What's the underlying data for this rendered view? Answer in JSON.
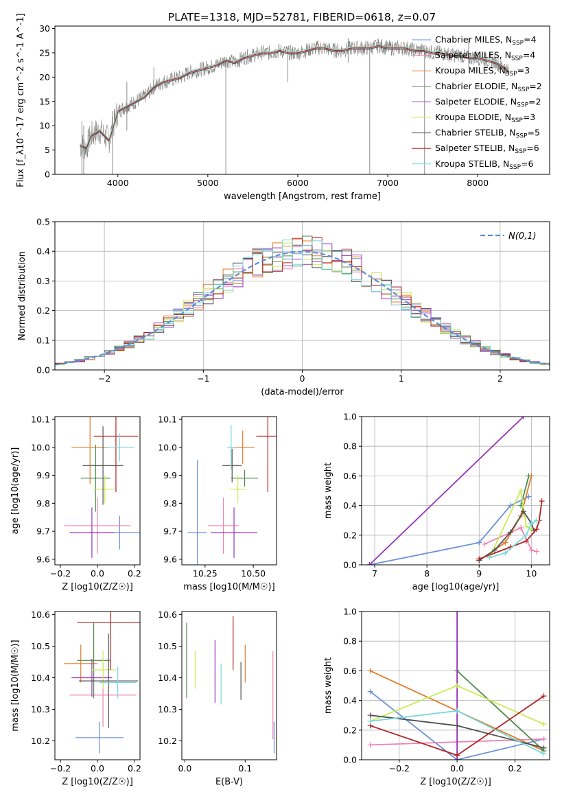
{
  "title": "PLATE=1318, MJD=52781, FIBERID=0618, z=0.07",
  "models": [
    {
      "name": "Chabrier MILES",
      "nssp": "4",
      "color": "#6a8fd8"
    },
    {
      "name": "Salpeter MILES",
      "nssp": "4",
      "color": "#ee82b0"
    },
    {
      "name": "Kroupa MILES",
      "nssp": "3",
      "color": "#e07b28"
    },
    {
      "name": "Chabrier ELODIE",
      "nssp": "2",
      "color": "#4c8a4c"
    },
    {
      "name": "Salpeter ELODIE",
      "nssp": "2",
      "color": "#9932b8"
    },
    {
      "name": "Kroupa ELODIE",
      "nssp": "3",
      "color": "#c9ec52"
    },
    {
      "name": "Chabrier STELIB",
      "nssp": "5",
      "color": "#505050"
    },
    {
      "name": "Salpeter STELIB",
      "nssp": "6",
      "color": "#b22222"
    },
    {
      "name": "Kroupa STELIB",
      "nssp": "6",
      "color": "#78d8dc"
    }
  ],
  "chart_data": [
    {
      "id": "spectrum",
      "type": "line",
      "xlabel": "wavelength [Angstrom, rest frame]",
      "ylabel": "Flux [f_λ10^-17 erg cm^-2 s^-1 A^-1]",
      "xlim": [
        3300,
        8800
      ],
      "ylim": [
        0,
        30.5
      ],
      "xticks": [
        4000,
        5000,
        6000,
        7000,
        8000
      ],
      "yticks": [
        0,
        5,
        10,
        15,
        20,
        25,
        30
      ],
      "legend_position": "right",
      "data_color": "#808080",
      "continuum": {
        "x": [
          3580,
          3650,
          3700,
          3800,
          3900,
          3950,
          4000,
          4100,
          4200,
          4300,
          4400,
          4500,
          4600,
          4700,
          4800,
          4900,
          5000,
          5100,
          5200,
          5300,
          5400,
          5500,
          5600,
          5700,
          5800,
          5900,
          6000,
          6100,
          6200,
          6300,
          6400,
          6500,
          6600,
          6700,
          6800,
          6900,
          7000,
          7100,
          7200,
          7300,
          7400,
          7500,
          7600,
          7700,
          7800,
          7900,
          8000,
          8100,
          8200,
          8300,
          8350
        ],
        "y": [
          6,
          5.5,
          8,
          9,
          7,
          10,
          13,
          14,
          15,
          16,
          18,
          19,
          19.5,
          20,
          21,
          21.5,
          22,
          22.5,
          23.5,
          23,
          24,
          24.5,
          25,
          25,
          25.5,
          25,
          25,
          25.5,
          26,
          26,
          25.5,
          25.5,
          26,
          26,
          26,
          26.5,
          26,
          26,
          26,
          25.5,
          25.5,
          25,
          25,
          24.5,
          24.5,
          24,
          24,
          23.5,
          23,
          22,
          21
        ]
      },
      "spikes": [
        {
          "x": 3600,
          "lo": 0,
          "hi": 11
        },
        {
          "x": 3620,
          "lo": 0,
          "hi": 10
        },
        {
          "x": 3940,
          "lo": 0,
          "hi": 13
        },
        {
          "x": 4100,
          "lo": 9,
          "hi": 19
        },
        {
          "x": 4400,
          "lo": 19,
          "hi": 22
        },
        {
          "x": 5200,
          "lo": 0,
          "hi": 23
        },
        {
          "x": 5890,
          "lo": 19,
          "hi": 25
        },
        {
          "x": 6560,
          "lo": 23,
          "hi": 28
        },
        {
          "x": 6800,
          "lo": 0,
          "hi": 26
        },
        {
          "x": 7410,
          "lo": 0,
          "hi": 26
        },
        {
          "x": 7900,
          "lo": 22,
          "hi": 28
        }
      ]
    },
    {
      "id": "residuals",
      "type": "step",
      "xlabel": "(data-model)/error",
      "ylabel": "Normed distribution",
      "xlim": [
        -2.5,
        2.5
      ],
      "ylim": [
        0,
        0.5
      ],
      "xticks": [
        -2,
        -1,
        0,
        1,
        2
      ],
      "yticks": [
        0.0,
        0.1,
        0.2,
        0.3,
        0.4,
        0.5
      ],
      "grid": true,
      "legend_position": "top-right",
      "reference_label": "N(0,1)",
      "reference_color": "#5b8ad8"
    },
    {
      "id": "age-vs-Z",
      "type": "errorbar",
      "xlabel": "Z [log10(Z/Z☉)]",
      "ylabel": "age [log10(age/yr)]",
      "xlim": [
        -0.23,
        0.23
      ],
      "ylim": [
        9.58,
        10.11
      ],
      "xticks": [
        -0.2,
        0.0,
        0.2
      ],
      "yticks": [
        9.6,
        9.7,
        9.8,
        9.9,
        10.0,
        10.1
      ],
      "points": [
        {
          "x": 0.12,
          "y": 9.695,
          "xerr": 0.15,
          "yerr": 0.06
        },
        {
          "x": 0.0,
          "y": 9.72,
          "xerr": 0.18,
          "yerr": 0.1
        },
        {
          "x": -0.04,
          "y": 10.0,
          "xerr": 0.1,
          "yerr": 0.13
        },
        {
          "x": -0.01,
          "y": 9.89,
          "xerr": 0.08,
          "yerr": 0.12
        },
        {
          "x": -0.03,
          "y": 9.695,
          "xerr": 0.12,
          "yerr": 0.09
        },
        {
          "x": 0.04,
          "y": 9.85,
          "xerr": 0.06,
          "yerr": 0.05
        },
        {
          "x": 0.03,
          "y": 9.935,
          "xerr": 0.11,
          "yerr": 0.14
        },
        {
          "x": 0.1,
          "y": 10.04,
          "xerr": 0.12,
          "yerr": 0.2
        },
        {
          "x": 0.12,
          "y": 10.0,
          "xerr": 0.08,
          "yerr": 0.05
        }
      ]
    },
    {
      "id": "age-vs-mass",
      "type": "errorbar",
      "xlabel": "mass [log10(M/M☉)]",
      "ylabel": "",
      "xlim": [
        10.13,
        10.62
      ],
      "ylim": [
        9.58,
        10.11
      ],
      "xticks": [
        10.25,
        10.5
      ],
      "yticks": [
        9.6,
        9.7,
        9.8,
        9.9,
        10.0,
        10.1
      ],
      "points": [
        {
          "x": 10.21,
          "y": 9.695,
          "xerr": 0.05,
          "yerr": 0.26
        },
        {
          "x": 10.345,
          "y": 9.72,
          "xerr": 0.08,
          "yerr": 0.1
        },
        {
          "x": 10.445,
          "y": 10.0,
          "xerr": 0.06,
          "yerr": 0.06
        },
        {
          "x": 10.455,
          "y": 9.89,
          "xerr": 0.07,
          "yerr": 0.03
        },
        {
          "x": 10.4,
          "y": 9.695,
          "xerr": 0.12,
          "yerr": 0.09
        },
        {
          "x": 10.42,
          "y": 9.85,
          "xerr": 0.04,
          "yerr": 0.05
        },
        {
          "x": 10.39,
          "y": 9.935,
          "xerr": 0.05,
          "yerr": 0.06
        },
        {
          "x": 10.575,
          "y": 10.04,
          "xerr": 0.06,
          "yerr": 0.2
        },
        {
          "x": 10.385,
          "y": 10.0,
          "xerr": 0.02,
          "yerr": 0.08
        }
      ]
    },
    {
      "id": "weight-vs-age",
      "type": "line",
      "xlabel": "age [log10(age/yr)]",
      "ylabel": "mass weight",
      "xlim": [
        6.75,
        10.35
      ],
      "ylim": [
        0,
        1.0
      ],
      "xticks": [
        7,
        8,
        9,
        10
      ],
      "yticks": [
        0.0,
        0.2,
        0.4,
        0.6,
        0.8,
        1.0
      ],
      "grid": true,
      "series": [
        {
          "x": [
            6.9,
            9.0,
            9.6,
            9.95
          ],
          "y": [
            0.0,
            0.15,
            0.4,
            0.46
          ]
        },
        {
          "x": [
            9.1,
            9.8,
            10.0,
            10.1
          ],
          "y": [
            0.14,
            0.25,
            0.1,
            0.09
          ]
        },
        {
          "x": [
            9.0,
            9.5,
            9.8,
            10.0
          ],
          "y": [
            0.03,
            0.15,
            0.33,
            0.6
          ]
        },
        {
          "x": [
            9.8,
            9.95
          ],
          "y": [
            0.4,
            0.6
          ]
        },
        {
          "x": [
            6.9,
            9.85
          ],
          "y": [
            0.0,
            1.0
          ]
        },
        {
          "x": [
            9.2,
            9.8,
            9.9,
            10.0
          ],
          "y": [
            0.05,
            0.5,
            0.26,
            0.24
          ]
        },
        {
          "x": [
            9.0,
            9.3,
            9.6,
            9.85,
            10.0,
            10.05
          ],
          "y": [
            0.03,
            0.1,
            0.22,
            0.36,
            0.28,
            0.23
          ]
        },
        {
          "x": [
            9.0,
            9.6,
            9.9,
            10.1,
            10.15,
            10.2
          ],
          "y": [
            0.04,
            0.12,
            0.16,
            0.24,
            0.3,
            0.43
          ]
        },
        {
          "x": [
            9.2,
            9.5,
            9.9,
            10.0,
            10.1
          ],
          "y": [
            0.05,
            0.08,
            0.2,
            0.28,
            0.3
          ]
        }
      ]
    },
    {
      "id": "mass-vs-Z",
      "type": "errorbar",
      "xlabel": "Z [log10(Z/Z☉)]",
      "ylabel": "mass [log10(M/M☉)]",
      "xlim": [
        -0.23,
        0.23
      ],
      "ylim": [
        10.14,
        10.61
      ],
      "xticks": [
        -0.2,
        0.0,
        0.2
      ],
      "yticks": [
        10.2,
        10.3,
        10.4,
        10.5,
        10.6
      ],
      "points": [
        {
          "x": 0.01,
          "y": 10.21,
          "xerr": 0.13,
          "yerr": 0.05
        },
        {
          "x": 0.03,
          "y": 10.345,
          "xerr": 0.18,
          "yerr": 0.1
        },
        {
          "x": -0.09,
          "y": 10.445,
          "xerr": 0.09,
          "yerr": 0.06
        },
        {
          "x": -0.02,
          "y": 10.455,
          "xerr": 0.09,
          "yerr": 0.12
        },
        {
          "x": -0.03,
          "y": 10.4,
          "xerr": 0.11,
          "yerr": 0.06
        },
        {
          "x": 0.03,
          "y": 10.425,
          "xerr": 0.07,
          "yerr": 0.06
        },
        {
          "x": 0.06,
          "y": 10.39,
          "xerr": 0.16,
          "yerr": 0.15
        },
        {
          "x": 0.07,
          "y": 10.575,
          "xerr": 0.18,
          "yerr": 0.15
        },
        {
          "x": 0.11,
          "y": 10.385,
          "xerr": 0.1,
          "yerr": 0.05
        }
      ]
    },
    {
      "id": "mass-vs-ebv",
      "type": "errorbar",
      "xlabel": "E(B-V)",
      "ylabel": "",
      "xlim": [
        -0.005,
        0.152
      ],
      "ylim": [
        10.14,
        10.61
      ],
      "xticks": [
        0.0,
        0.1
      ],
      "yticks": [
        10.2,
        10.3,
        10.4,
        10.5,
        10.6
      ],
      "points": [
        {
          "x": 0.148,
          "y": 10.21,
          "xerr": 0,
          "yerr": 0.05
        },
        {
          "x": 0.146,
          "y": 10.345,
          "xerr": 0,
          "yerr": 0.14
        },
        {
          "x": 0.1,
          "y": 10.445,
          "xerr": 0,
          "yerr": 0.06
        },
        {
          "x": 0.003,
          "y": 10.455,
          "xerr": 0,
          "yerr": 0.12
        },
        {
          "x": 0.05,
          "y": 10.42,
          "xerr": 0,
          "yerr": 0.1
        },
        {
          "x": 0.017,
          "y": 10.425,
          "xerr": 0,
          "yerr": 0.06
        },
        {
          "x": 0.093,
          "y": 10.39,
          "xerr": 0,
          "yerr": 0.06
        },
        {
          "x": 0.08,
          "y": 10.51,
          "xerr": 0,
          "yerr": 0.085
        },
        {
          "x": 0.06,
          "y": 10.38,
          "xerr": 0,
          "yerr": 0.065
        }
      ]
    },
    {
      "id": "weight-vs-Z",
      "type": "line",
      "xlabel": "Z [log10(Z/Z☉)]",
      "ylabel": "mass weight",
      "xlim": [
        -0.33,
        0.32
      ],
      "ylim": [
        0,
        1.0
      ],
      "xticks": [
        -0.2,
        0.0,
        0.2
      ],
      "yticks": [
        0.0,
        0.2,
        0.4,
        0.6,
        0.8,
        1.0
      ],
      "grid": true,
      "series": [
        {
          "x": [
            -0.3,
            0.0,
            0.3
          ],
          "y": [
            0.46,
            0.0,
            0.14
          ]
        },
        {
          "x": [
            -0.3,
            0.3
          ],
          "y": [
            0.1,
            0.14
          ]
        },
        {
          "x": [
            -0.3,
            0.3
          ],
          "y": [
            0.6,
            0.06
          ]
        },
        {
          "x": [
            0.0,
            0.3
          ],
          "y": [
            0.6,
            0.06
          ]
        },
        {
          "x": [
            0.0,
            0.0
          ],
          "y": [
            0.0,
            1.0
          ]
        },
        {
          "x": [
            -0.3,
            0.0,
            0.3
          ],
          "y": [
            0.26,
            0.5,
            0.24
          ]
        },
        {
          "x": [
            -0.3,
            0.0,
            0.3
          ],
          "y": [
            0.3,
            0.23,
            0.08
          ]
        },
        {
          "x": [
            -0.3,
            0.0,
            0.3
          ],
          "y": [
            0.23,
            0.03,
            0.43
          ]
        },
        {
          "x": [
            -0.3,
            0.0,
            0.3
          ],
          "y": [
            0.26,
            0.33,
            0.04
          ]
        }
      ]
    }
  ]
}
